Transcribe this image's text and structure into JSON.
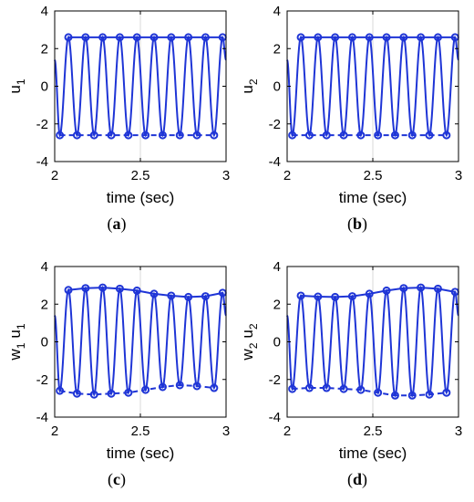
{
  "colors": {
    "series": "#1f35d6",
    "axis": "#000000",
    "grid": "#d9d9d9",
    "background": "#ffffff"
  },
  "chart_data": [
    {
      "type": "line",
      "panel_label": "(a)",
      "panel_letter": "a",
      "xlabel": "time (sec)",
      "ylabel_sym": "u",
      "ylabel_sub": "1",
      "xlim": [
        2,
        3
      ],
      "ylim": [
        -4,
        4
      ],
      "xticks": [
        "2",
        "2.5",
        "3"
      ],
      "yticks": [
        "-4",
        "-2",
        "0",
        "2",
        "4"
      ],
      "oscillation": {
        "period_sec": 0.1,
        "markers": "o",
        "grid": "vertical at x=2.5"
      },
      "series": [
        {
          "style": "solid",
          "x": [
            2.08,
            2.13,
            2.18,
            2.23,
            2.28,
            2.33,
            2.38,
            2.43,
            2.48,
            2.53,
            2.58,
            2.63,
            2.68,
            2.73,
            2.78,
            2.83,
            2.88,
            2.93,
            2.98
          ],
          "y": [
            2.6,
            -2.6,
            2.6,
            -2.6,
            2.6,
            -2.6,
            2.6,
            -2.6,
            2.6,
            -2.6,
            2.6,
            -2.6,
            2.6,
            -2.6,
            2.6,
            -2.6,
            2.6,
            -2.6,
            2.6
          ]
        },
        {
          "style": "dashed",
          "x": [
            2.03,
            2.13,
            2.23,
            2.33,
            2.43,
            2.53,
            2.63,
            2.73,
            2.83,
            2.93
          ],
          "y": [
            -2.6,
            -2.6,
            -2.6,
            -2.6,
            -2.6,
            -2.6,
            -2.6,
            -2.6,
            -2.6,
            -2.6
          ]
        }
      ]
    },
    {
      "type": "line",
      "panel_label": "(b)",
      "panel_letter": "b",
      "xlabel": "time (sec)",
      "ylabel_sym": "u",
      "ylabel_sub": "2",
      "xlim": [
        2,
        3
      ],
      "ylim": [
        -4,
        4
      ],
      "xticks": [
        "2",
        "2.5",
        "3"
      ],
      "yticks": [
        "-4",
        "-2",
        "0",
        "2",
        "4"
      ],
      "oscillation": {
        "period_sec": 0.1,
        "markers": "o",
        "grid": "vertical at x=2.5"
      },
      "series": [
        {
          "style": "solid",
          "x": [
            2.08,
            2.13,
            2.18,
            2.23,
            2.28,
            2.33,
            2.38,
            2.43,
            2.48,
            2.53,
            2.58,
            2.63,
            2.68,
            2.73,
            2.78,
            2.83,
            2.88,
            2.93,
            2.98
          ],
          "y": [
            2.6,
            -2.6,
            2.6,
            -2.6,
            2.6,
            -2.6,
            2.6,
            -2.6,
            2.6,
            -2.6,
            2.6,
            -2.6,
            2.6,
            -2.6,
            2.6,
            -2.6,
            2.6,
            -2.6,
            2.6
          ]
        },
        {
          "style": "dashed",
          "x": [
            2.03,
            2.13,
            2.23,
            2.33,
            2.43,
            2.53,
            2.63,
            2.73,
            2.83,
            2.93
          ],
          "y": [
            -2.6,
            -2.6,
            -2.6,
            -2.6,
            -2.6,
            -2.6,
            -2.6,
            -2.6,
            -2.6,
            -2.6
          ]
        }
      ]
    },
    {
      "type": "line",
      "panel_label": "(c)",
      "panel_letter": "c",
      "xlabel": "time (sec)",
      "ylabel_sym": "w",
      "ylabel_sub": "1",
      "ylabel_sym2": "u",
      "ylabel_sub2": "1",
      "xlim": [
        2,
        3
      ],
      "ylim": [
        -4,
        4
      ],
      "xticks": [
        "2",
        "2.5",
        "3"
      ],
      "yticks": [
        "-4",
        "-2",
        "0",
        "2",
        "4"
      ],
      "oscillation": {
        "period_sec": 0.1,
        "markers": "o",
        "grid": "vertical at x=2.5"
      },
      "series": [
        {
          "style": "solid",
          "x": [
            2.08,
            2.13,
            2.18,
            2.23,
            2.28,
            2.33,
            2.38,
            2.43,
            2.48,
            2.53,
            2.58,
            2.63,
            2.68,
            2.73,
            2.78,
            2.83,
            2.88,
            2.93,
            2.98
          ],
          "y": [
            2.75,
            -2.75,
            2.85,
            -2.8,
            2.88,
            -2.75,
            2.82,
            -2.7,
            2.72,
            -2.55,
            2.55,
            -2.4,
            2.45,
            -2.3,
            2.38,
            -2.35,
            2.42,
            -2.45,
            2.6
          ]
        },
        {
          "style": "dashed",
          "x": [
            2.03,
            2.13,
            2.23,
            2.33,
            2.43,
            2.53,
            2.63,
            2.73,
            2.83,
            2.93
          ],
          "y": [
            -2.6,
            -2.75,
            -2.8,
            -2.75,
            -2.7,
            -2.55,
            -2.4,
            -2.3,
            -2.35,
            -2.45
          ]
        }
      ]
    },
    {
      "type": "line",
      "panel_label": "(d)",
      "panel_letter": "d",
      "xlabel": "time (sec)",
      "ylabel_sym": "w",
      "ylabel_sub": "2",
      "ylabel_sym2": "u",
      "ylabel_sub2": "2",
      "xlim": [
        2,
        3
      ],
      "ylim": [
        -4,
        4
      ],
      "xticks": [
        "2",
        "2.5",
        "3"
      ],
      "yticks": [
        "-4",
        "-2",
        "0",
        "2",
        "4"
      ],
      "oscillation": {
        "period_sec": 0.1,
        "markers": "o",
        "grid": "vertical at x=2.5"
      },
      "series": [
        {
          "style": "solid",
          "x": [
            2.08,
            2.13,
            2.18,
            2.23,
            2.28,
            2.33,
            2.38,
            2.43,
            2.48,
            2.53,
            2.58,
            2.63,
            2.68,
            2.73,
            2.78,
            2.83,
            2.88,
            2.93,
            2.98
          ],
          "y": [
            2.45,
            -2.45,
            2.4,
            -2.45,
            2.38,
            -2.5,
            2.42,
            -2.55,
            2.55,
            -2.7,
            2.72,
            -2.85,
            2.85,
            -2.85,
            2.88,
            -2.8,
            2.82,
            -2.7,
            2.65
          ]
        },
        {
          "style": "dashed",
          "x": [
            2.03,
            2.13,
            2.23,
            2.33,
            2.43,
            2.53,
            2.63,
            2.73,
            2.83,
            2.93
          ],
          "y": [
            -2.5,
            -2.45,
            -2.45,
            -2.5,
            -2.55,
            -2.7,
            -2.85,
            -2.85,
            -2.8,
            -2.7
          ]
        }
      ]
    }
  ]
}
